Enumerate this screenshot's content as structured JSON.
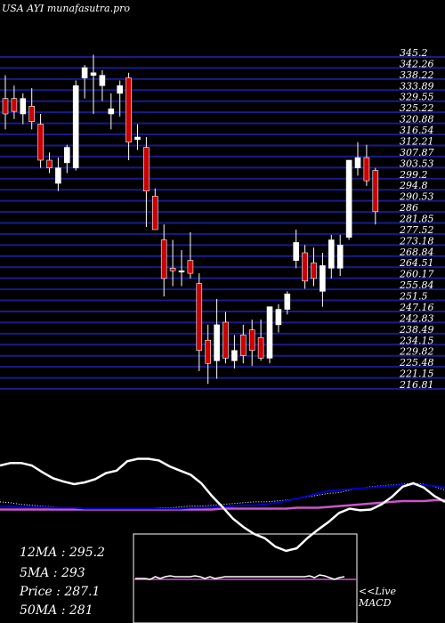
{
  "header": {
    "title": "USA AYI munafasutra.pro"
  },
  "chart_data": {
    "type": "candlestick",
    "ylim": [
      214,
      349
    ],
    "price_levels": [
      "345.2",
      "342.26",
      "338.22",
      "333.89",
      "329.55",
      "325.22",
      "320.88",
      "316.54",
      "312.21",
      "307.87",
      "303.53",
      "299.2",
      "294.8",
      "290.53",
      "286",
      "281.85",
      "277.52",
      "273.18",
      "268.84",
      "264.51",
      "260.17",
      "255.84",
      "251.5",
      "247.16",
      "242.83",
      "238.49",
      "234.15",
      "229.82",
      "225.48",
      "221.15",
      "216.81"
    ],
    "candles": [
      {
        "o": 322,
        "h": 337,
        "l": 316,
        "c": 328,
        "col": "red"
      },
      {
        "o": 328,
        "h": 333,
        "l": 320,
        "c": 323,
        "col": "red"
      },
      {
        "o": 322,
        "h": 330,
        "l": 318,
        "c": 328,
        "col": "white"
      },
      {
        "o": 325,
        "h": 332,
        "l": 316,
        "c": 319,
        "col": "red"
      },
      {
        "o": 318,
        "h": 322,
        "l": 301,
        "c": 304,
        "col": "red"
      },
      {
        "o": 304,
        "h": 307,
        "l": 299,
        "c": 301,
        "col": "red"
      },
      {
        "o": 295,
        "h": 305,
        "l": 292,
        "c": 301,
        "col": "white"
      },
      {
        "o": 303,
        "h": 310,
        "l": 299,
        "c": 309,
        "col": "white"
      },
      {
        "o": 301,
        "h": 335,
        "l": 300,
        "c": 333,
        "col": "white"
      },
      {
        "o": 336,
        "h": 341,
        "l": 328,
        "c": 340,
        "col": "white"
      },
      {
        "o": 337,
        "h": 345,
        "l": 322,
        "c": 338,
        "col": "white"
      },
      {
        "o": 337,
        "h": 339,
        "l": 327,
        "c": 333,
        "col": "white"
      },
      {
        "o": 324,
        "h": 330,
        "l": 316,
        "c": 322,
        "col": "white"
      },
      {
        "o": 330,
        "h": 335,
        "l": 321,
        "c": 333,
        "col": "white"
      },
      {
        "o": 336,
        "h": 338,
        "l": 304,
        "c": 311,
        "col": "red"
      },
      {
        "o": 312,
        "h": 318,
        "l": 308,
        "c": 313,
        "col": "white"
      },
      {
        "o": 309,
        "h": 313,
        "l": 278,
        "c": 292,
        "col": "red"
      },
      {
        "o": 290,
        "h": 293,
        "l": 277,
        "c": 277,
        "col": "red"
      },
      {
        "o": 273,
        "h": 279,
        "l": 251,
        "c": 258,
        "col": "red"
      },
      {
        "o": 261,
        "h": 273,
        "l": 255,
        "c": 262,
        "col": "red"
      },
      {
        "o": 261,
        "h": 269,
        "l": 255,
        "c": 261,
        "col": "white"
      },
      {
        "o": 265,
        "h": 276,
        "l": 258,
        "c": 260,
        "col": "red"
      },
      {
        "o": 256,
        "h": 260,
        "l": 222,
        "c": 230,
        "col": "red"
      },
      {
        "o": 234,
        "h": 240,
        "l": 217,
        "c": 225,
        "col": "red"
      },
      {
        "o": 226,
        "h": 250,
        "l": 219,
        "c": 240,
        "col": "white"
      },
      {
        "o": 241,
        "h": 245,
        "l": 225,
        "c": 227,
        "col": "red"
      },
      {
        "o": 226,
        "h": 236,
        "l": 223,
        "c": 230,
        "col": "white"
      },
      {
        "o": 236,
        "h": 240,
        "l": 225,
        "c": 228,
        "col": "red"
      },
      {
        "o": 238,
        "h": 242,
        "l": 224,
        "c": 230,
        "col": "red"
      },
      {
        "o": 235,
        "h": 242,
        "l": 226,
        "c": 227,
        "col": "red"
      },
      {
        "o": 227,
        "h": 247,
        "l": 225,
        "c": 247,
        "col": "white"
      },
      {
        "o": 240,
        "h": 248,
        "l": 237,
        "c": 246,
        "col": "white"
      },
      {
        "o": 246,
        "h": 253,
        "l": 244,
        "c": 252,
        "col": "white"
      },
      {
        "o": 265,
        "h": 277,
        "l": 262,
        "c": 272,
        "col": "white"
      },
      {
        "o": 268,
        "h": 271,
        "l": 254,
        "c": 257,
        "col": "red"
      },
      {
        "o": 264,
        "h": 270,
        "l": 255,
        "c": 258,
        "col": "red"
      },
      {
        "o": 253,
        "h": 268,
        "l": 247,
        "c": 263,
        "col": "white"
      },
      {
        "o": 262,
        "h": 275,
        "l": 258,
        "c": 273,
        "col": "white"
      },
      {
        "o": 262,
        "h": 275,
        "l": 259,
        "c": 271,
        "col": "white"
      },
      {
        "o": 274,
        "h": 304,
        "l": 273,
        "c": 304,
        "col": "white"
      },
      {
        "o": 301,
        "h": 311,
        "l": 298,
        "c": 305,
        "col": "white"
      },
      {
        "o": 305,
        "h": 310,
        "l": 294,
        "c": 296,
        "col": "red"
      },
      {
        "o": 300,
        "h": 301,
        "l": 279,
        "c": 284,
        "col": "red"
      }
    ],
    "indicator": {
      "ma_white": [
        81,
        84,
        84,
        81,
        73,
        66,
        62,
        59,
        61,
        65,
        72,
        75,
        86,
        89,
        89,
        87,
        80,
        75,
        70,
        60,
        45,
        32,
        18,
        8,
        0,
        -5,
        -15,
        -20,
        -17,
        -5,
        5,
        14,
        25,
        30,
        28,
        29,
        35,
        44,
        56,
        60,
        55,
        45,
        38
      ],
      "ma_blue": [
        33,
        33,
        32,
        32,
        32,
        31,
        31,
        31,
        30,
        30,
        30,
        30,
        30,
        30,
        30,
        30,
        30,
        30,
        31,
        31,
        32,
        32,
        33,
        34,
        34,
        35,
        37,
        39,
        42,
        45,
        48,
        51,
        52,
        53,
        54,
        55,
        56,
        57,
        58,
        58,
        58,
        57,
        55
      ],
      "ma_pink": [
        29,
        29,
        29,
        29,
        29,
        29,
        29,
        29,
        29,
        29,
        29,
        29,
        29,
        29,
        29,
        29,
        29,
        29,
        29,
        29,
        29,
        30,
        30,
        30,
        30,
        30,
        30,
        30,
        31,
        31,
        31,
        32,
        33,
        34,
        35,
        36,
        37,
        38,
        39,
        39,
        39,
        40,
        40
      ],
      "ma_dotted": [
        38,
        37,
        35,
        34,
        33,
        32,
        31,
        31,
        30,
        30,
        30,
        30,
        30,
        30,
        30,
        31,
        31,
        32,
        33,
        33,
        34,
        35,
        36,
        37,
        38,
        38,
        39,
        40,
        42,
        44,
        46,
        48,
        49,
        52,
        54,
        56,
        57,
        58,
        59,
        60,
        59,
        56,
        52
      ]
    },
    "macd_values": [
      50,
      50,
      50,
      49,
      52,
      50,
      52,
      53,
      52,
      52,
      52,
      52,
      53,
      52,
      50,
      52,
      50,
      51,
      52,
      52,
      52,
      52,
      52,
      52,
      52,
      52,
      52,
      52,
      52,
      52,
      52,
      52,
      52,
      52,
      52,
      53,
      51,
      54,
      53,
      51,
      49,
      51,
      52
    ]
  },
  "stats": {
    "ma12": "12MA : 295.2",
    "ma5": "5MA : 293",
    "price": "Price  : 287.1",
    "ma50": "50MA : 281"
  },
  "live_label": {
    "line1": "<<Live",
    "line2": "MACD"
  },
  "colors": {
    "grid": "#1a1a8c",
    "bear": "#cc0000",
    "bull": "#ffffff",
    "blue": "#0000cc",
    "pink": "#cc55cc"
  }
}
